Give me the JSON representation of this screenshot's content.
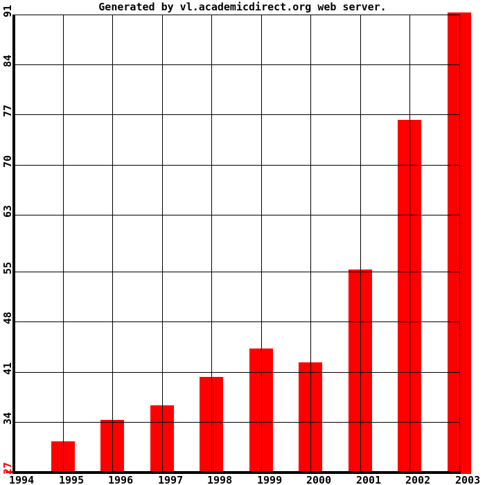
{
  "colors": {
    "bar": "#ff0000",
    "axis": "#000000",
    "gridline": "#000000",
    "min_tick_label": "#ff0000",
    "background": "#ffffff",
    "title_text": "#000000"
  },
  "chart_data": {
    "type": "bar",
    "title": "Generated by vl.academicdirect.org web server.",
    "categories": [
      "1994",
      "1995",
      "1996",
      "1997",
      "1998",
      "1999",
      "2000",
      "2001",
      "2002",
      "2003"
    ],
    "values": [
      27,
      31,
      34,
      36,
      40,
      44,
      42,
      55,
      76,
      91
    ],
    "series_color": "#ff0000",
    "xlabel": "",
    "ylabel": "",
    "ylim": [
      27,
      91
    ],
    "y_ticks": [
      27,
      34,
      41,
      48,
      55,
      63,
      70,
      77,
      84,
      91
    ],
    "y_tick_labels_top_to_bottom": [
      "91",
      "84",
      "77",
      "70",
      "63",
      "55",
      "48",
      "41",
      "34",
      "27"
    ],
    "min_y_label_color": "#ff0000",
    "grid": true,
    "legend": "none",
    "notes": "bars centered on year gridlines; 1994 bar has zero height (equals axis minimum); 2003 bar reaches chart top"
  }
}
